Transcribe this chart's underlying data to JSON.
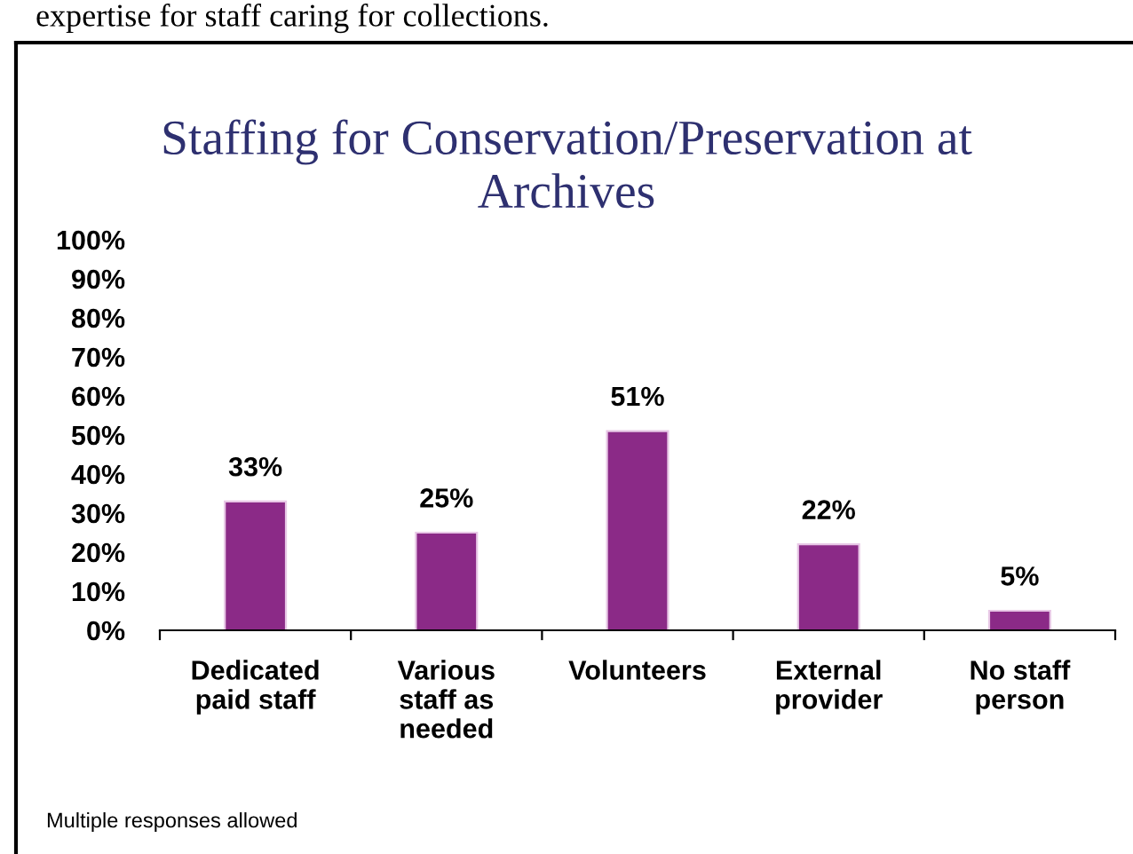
{
  "chart_data": {
    "type": "bar",
    "title": "Staffing for Conservation/Preservation at\nArchives",
    "categories": [
      "Dedicated\npaid staff",
      "Various\nstaff as\nneeded",
      "Volunteers",
      "External\nprovider",
      "No staff\nperson"
    ],
    "values": [
      33,
      25,
      51,
      22,
      5
    ],
    "color": "#8b2a87",
    "ylim": [
      0,
      100
    ],
    "yticks": [
      {
        "value": 0,
        "label": "0%"
      },
      {
        "value": 10,
        "label": "10%"
      },
      {
        "value": 20,
        "label": "20%"
      },
      {
        "value": 30,
        "label": "30%"
      },
      {
        "value": 40,
        "label": "40%"
      },
      {
        "value": 50,
        "label": "50%"
      },
      {
        "value": 60,
        "label": "60%"
      },
      {
        "value": 70,
        "label": "70%"
      },
      {
        "value": 80,
        "label": "80%"
      },
      {
        "value": 90,
        "label": "90%"
      },
      {
        "value": 100,
        "label": "100%"
      }
    ],
    "value_labels": [
      "33%",
      "25%",
      "51%",
      "22%",
      "5%"
    ],
    "grid": false,
    "legend": false,
    "annotations": [
      "expertise for staff caring for collections.",
      "Multiple responses allowed"
    ]
  }
}
